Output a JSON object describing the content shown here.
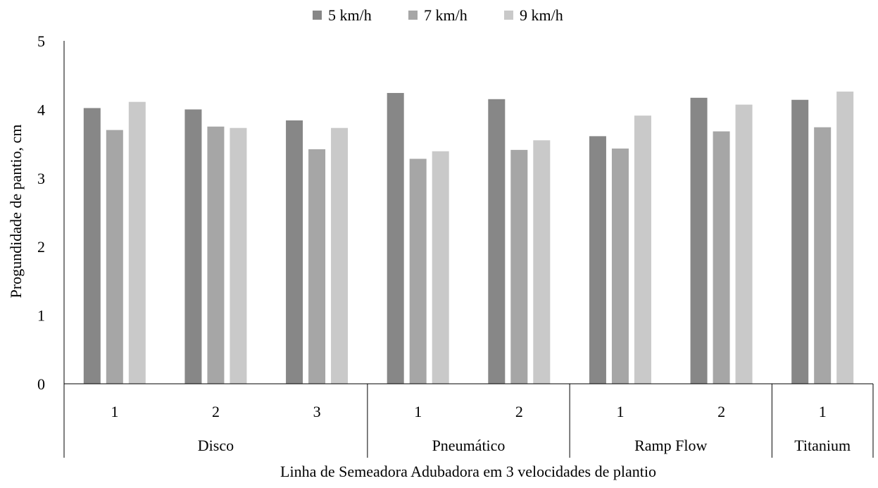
{
  "chart_data": {
    "type": "bar",
    "title": "",
    "xlabel": "Linha de Semeadora Adubadora em 3 velocidades de plantio",
    "ylabel": "Progundidade de pantio, cm",
    "ylim": [
      0,
      5
    ],
    "yticks": [
      0,
      1,
      2,
      3,
      4,
      5
    ],
    "grid": false,
    "legend_position": "top-center",
    "groups": [
      {
        "label": "Disco",
        "categories": [
          "1",
          "2",
          "3"
        ]
      },
      {
        "label": "Pneumático",
        "categories": [
          "1",
          "2"
        ]
      },
      {
        "label": "Ramp Flow",
        "categories": [
          "1",
          "2"
        ]
      },
      {
        "label": "Titanium",
        "categories": [
          "1"
        ]
      }
    ],
    "series": [
      {
        "name": "5 km/h",
        "color": "#878787",
        "values": [
          4.02,
          4.0,
          3.84,
          4.24,
          4.15,
          3.61,
          4.17,
          4.14
        ]
      },
      {
        "name": "7 km/h",
        "color": "#a6a6a6",
        "values": [
          3.7,
          3.75,
          3.42,
          3.28,
          3.41,
          3.43,
          3.68,
          3.74
        ]
      },
      {
        "name": "9 km/h",
        "color": "#c9c9c9",
        "values": [
          4.11,
          3.73,
          3.73,
          3.39,
          3.55,
          3.91,
          4.07,
          4.26
        ]
      }
    ]
  }
}
